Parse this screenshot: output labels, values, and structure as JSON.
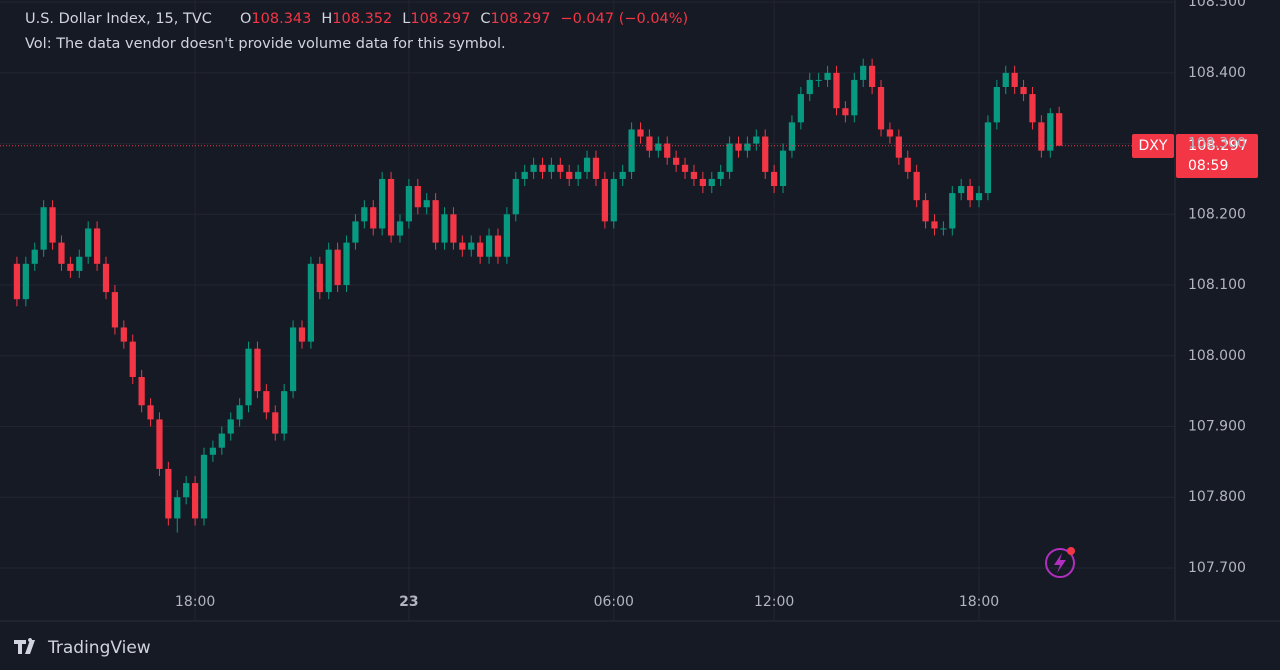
{
  "chart_data": {
    "type": "candlestick",
    "title": "U.S. Dollar Index, 15, TVC",
    "ohlc_letters": [
      "O",
      "H",
      "L",
      "C"
    ],
    "change": "−0.047 (−0.04%)",
    "volume_note": "Vol: The data vendor doesn't provide volume data for this symbol.",
    "symbol": "DXY",
    "countdown": "08:59",
    "brand": "TradingView",
    "up_color": "#089981",
    "down_color": "#f23645",
    "grid": true,
    "xlim": [
      -1.9,
      130
    ],
    "xticks": [
      {
        "value": 20,
        "label": "18:00"
      },
      {
        "value": 44,
        "label": "23"
      },
      {
        "value": 67,
        "label": "06:00"
      },
      {
        "value": 85,
        "label": "12:00"
      },
      {
        "value": 108,
        "label": "18:00"
      }
    ],
    "ylim": [
      107.625,
      108.503
    ],
    "yticks": [
      {
        "value": 107.7,
        "label": "107.700"
      },
      {
        "value": 107.8,
        "label": "107.800"
      },
      {
        "value": 107.9,
        "label": "107.900"
      },
      {
        "value": 108.0,
        "label": "108.000"
      },
      {
        "value": 108.1,
        "label": "108.100"
      },
      {
        "value": 108.2,
        "label": "108.200"
      },
      {
        "value": 108.3,
        "label": "108.300"
      },
      {
        "value": 108.4,
        "label": "108.400"
      },
      {
        "value": 108.5,
        "label": "108.500"
      }
    ],
    "open": [
      108.13,
      108.08,
      108.13,
      108.15,
      108.21,
      108.16,
      108.13,
      108.12,
      108.14,
      108.18,
      108.13,
      108.09,
      108.04,
      108.02,
      107.97,
      107.93,
      107.91,
      107.84,
      107.77,
      107.8,
      107.82,
      107.77,
      107.86,
      107.87,
      107.89,
      107.91,
      107.93,
      108.01,
      107.95,
      107.92,
      107.89,
      107.95,
      108.04,
      108.02,
      108.13,
      108.09,
      108.15,
      108.1,
      108.16,
      108.19,
      108.21,
      108.18,
      108.25,
      108.17,
      108.19,
      108.24,
      108.21,
      108.22,
      108.16,
      108.2,
      108.16,
      108.15,
      108.16,
      108.14,
      108.17,
      108.14,
      108.2,
      108.25,
      108.26,
      108.27,
      108.26,
      108.27,
      108.26,
      108.25,
      108.26,
      108.28,
      108.25,
      108.19,
      108.25,
      108.26,
      108.32,
      108.31,
      108.29,
      108.3,
      108.28,
      108.27,
      108.26,
      108.25,
      108.24,
      108.25,
      108.26,
      108.3,
      108.29,
      108.3,
      108.31,
      108.26,
      108.24,
      108.29,
      108.33,
      108.37,
      108.39,
      108.39,
      108.4,
      108.35,
      108.34,
      108.39,
      108.41,
      108.38,
      108.32,
      108.31,
      108.28,
      108.26,
      108.22,
      108.19,
      108.18,
      108.18,
      108.23,
      108.24,
      108.22,
      108.23,
      108.33,
      108.38,
      108.4,
      108.38,
      108.37,
      108.33,
      108.29,
      108.343
    ],
    "high": [
      108.14,
      108.14,
      108.16,
      108.22,
      108.22,
      108.17,
      108.14,
      108.15,
      108.19,
      108.19,
      108.14,
      108.1,
      108.05,
      108.03,
      107.98,
      107.94,
      107.92,
      107.85,
      107.81,
      107.83,
      107.83,
      107.87,
      107.88,
      107.9,
      107.92,
      107.94,
      108.02,
      108.02,
      107.96,
      107.93,
      107.96,
      108.05,
      108.05,
      108.14,
      108.14,
      108.16,
      108.16,
      108.17,
      108.2,
      108.22,
      108.22,
      108.26,
      108.26,
      108.2,
      108.25,
      108.25,
      108.23,
      108.23,
      108.21,
      108.21,
      108.17,
      108.17,
      108.17,
      108.18,
      108.18,
      108.21,
      108.26,
      108.27,
      108.28,
      108.28,
      108.28,
      108.28,
      108.27,
      108.27,
      108.29,
      108.29,
      108.26,
      108.26,
      108.27,
      108.33,
      108.33,
      108.32,
      108.31,
      108.31,
      108.29,
      108.28,
      108.27,
      108.26,
      108.26,
      108.27,
      108.31,
      108.31,
      108.31,
      108.32,
      108.32,
      108.27,
      108.3,
      108.34,
      108.38,
      108.4,
      108.4,
      108.41,
      108.41,
      108.36,
      108.4,
      108.42,
      108.42,
      108.39,
      108.33,
      108.32,
      108.29,
      108.27,
      108.23,
      108.2,
      108.19,
      108.24,
      108.25,
      108.25,
      108.24,
      108.34,
      108.39,
      108.41,
      108.41,
      108.39,
      108.38,
      108.34,
      108.35,
      108.352
    ],
    "low": [
      108.07,
      108.07,
      108.12,
      108.14,
      108.15,
      108.12,
      108.11,
      108.11,
      108.13,
      108.12,
      108.08,
      108.03,
      108.01,
      107.96,
      107.92,
      107.9,
      107.83,
      107.76,
      107.75,
      107.79,
      107.76,
      107.76,
      107.85,
      107.86,
      107.88,
      107.9,
      107.92,
      107.94,
      107.91,
      107.88,
      107.88,
      107.94,
      108.01,
      108.01,
      108.08,
      108.08,
      108.09,
      108.09,
      108.15,
      108.18,
      108.17,
      108.17,
      108.16,
      108.16,
      108.18,
      108.2,
      108.2,
      108.15,
      108.15,
      108.15,
      108.14,
      108.14,
      108.13,
      108.13,
      108.13,
      108.13,
      108.19,
      108.24,
      108.25,
      108.25,
      108.25,
      108.25,
      108.24,
      108.24,
      108.25,
      108.24,
      108.18,
      108.18,
      108.24,
      108.25,
      108.3,
      108.28,
      108.28,
      108.27,
      108.26,
      108.25,
      108.24,
      108.23,
      108.23,
      108.24,
      108.25,
      108.28,
      108.28,
      108.29,
      108.25,
      108.23,
      108.23,
      108.28,
      108.32,
      108.36,
      108.38,
      108.38,
      108.34,
      108.33,
      108.33,
      108.38,
      108.37,
      108.31,
      108.3,
      108.27,
      108.25,
      108.21,
      108.18,
      108.17,
      108.17,
      108.17,
      108.22,
      108.21,
      108.21,
      108.22,
      108.32,
      108.37,
      108.37,
      108.36,
      108.32,
      108.28,
      108.28,
      108.297
    ],
    "close": [
      108.08,
      108.13,
      108.15,
      108.21,
      108.16,
      108.13,
      108.12,
      108.14,
      108.18,
      108.13,
      108.09,
      108.04,
      108.02,
      107.97,
      107.93,
      107.91,
      107.84,
      107.77,
      107.8,
      107.82,
      107.77,
      107.86,
      107.87,
      107.89,
      107.91,
      107.93,
      108.01,
      107.95,
      107.92,
      107.89,
      107.95,
      108.04,
      108.02,
      108.13,
      108.09,
      108.15,
      108.1,
      108.16,
      108.19,
      108.21,
      108.18,
      108.25,
      108.17,
      108.19,
      108.24,
      108.21,
      108.22,
      108.16,
      108.2,
      108.16,
      108.15,
      108.16,
      108.14,
      108.17,
      108.14,
      108.2,
      108.25,
      108.26,
      108.27,
      108.26,
      108.27,
      108.26,
      108.25,
      108.26,
      108.28,
      108.25,
      108.19,
      108.25,
      108.26,
      108.32,
      108.31,
      108.29,
      108.3,
      108.28,
      108.27,
      108.26,
      108.25,
      108.24,
      108.25,
      108.26,
      108.3,
      108.29,
      108.3,
      108.31,
      108.26,
      108.24,
      108.29,
      108.33,
      108.37,
      108.39,
      108.39,
      108.4,
      108.35,
      108.34,
      108.39,
      108.41,
      108.38,
      108.32,
      108.31,
      108.28,
      108.26,
      108.22,
      108.19,
      108.18,
      108.18,
      108.23,
      108.24,
      108.22,
      108.23,
      108.33,
      108.38,
      108.4,
      108.38,
      108.37,
      108.33,
      108.29,
      108.343,
      108.297
    ]
  }
}
